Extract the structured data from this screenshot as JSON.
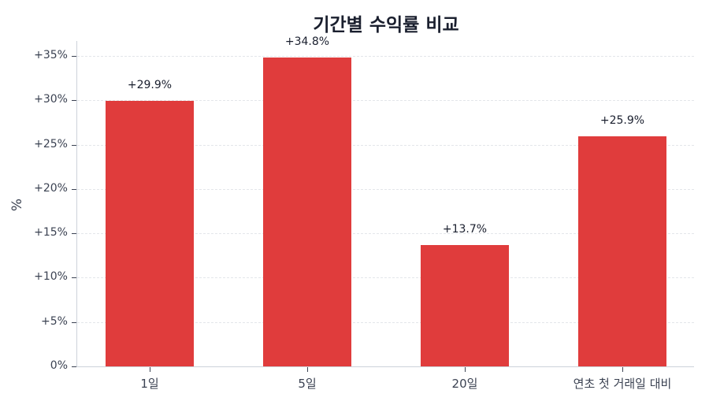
{
  "chart_data": {
    "type": "bar",
    "title": "기간별 수익률 비교",
    "xlabel": "",
    "ylabel": "%",
    "categories": [
      "1일",
      "5일",
      "20일",
      "연초 첫 거래일 대비"
    ],
    "values": [
      29.9,
      34.8,
      13.7,
      25.9
    ],
    "value_labels": [
      "+29.9%",
      "+34.8%",
      "+13.7%",
      "+25.9%"
    ],
    "ylim": [
      0,
      36.5
    ],
    "yticks": [
      0,
      5,
      10,
      15,
      20,
      25,
      30,
      35
    ],
    "ytick_labels": [
      "0%",
      "+5%",
      "+10%",
      "+15%",
      "+20%",
      "+25%",
      "+30%",
      "+35%"
    ],
    "grid": true,
    "legend": null,
    "bar_color": "#e03c3c"
  }
}
